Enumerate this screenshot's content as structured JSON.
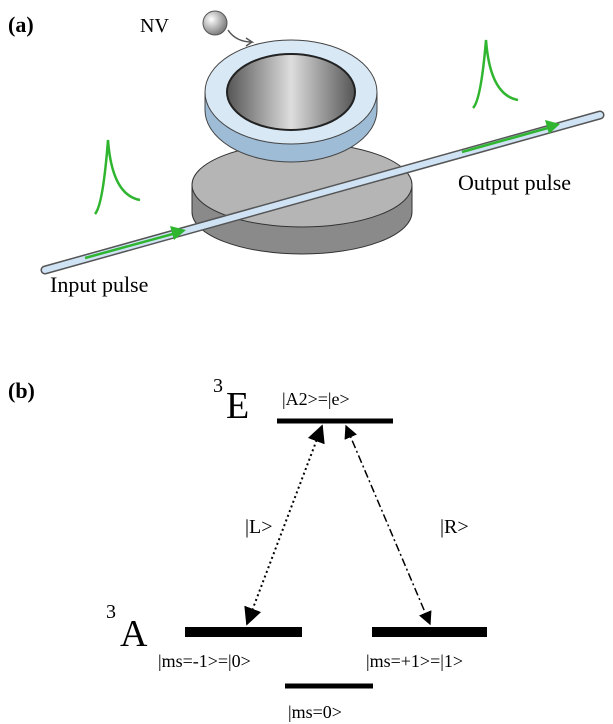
{
  "panel_a": {
    "label": "(a)",
    "emitter_label": "NV",
    "input_label": "Input pulse",
    "output_label": "Output pulse"
  },
  "panel_b": {
    "label": "(b)",
    "excited": {
      "multiplicity": "3",
      "symbol": "E",
      "state": "|A2>=|e>"
    },
    "ground": {
      "multiplicity": "3",
      "symbol": "A",
      "left_state": "|ms=-1>=|0>",
      "right_state": "|ms=+1>=|1>",
      "middle_state": "|ms=0>"
    },
    "transitions": {
      "left": "|L>",
      "right": "|R>"
    }
  }
}
